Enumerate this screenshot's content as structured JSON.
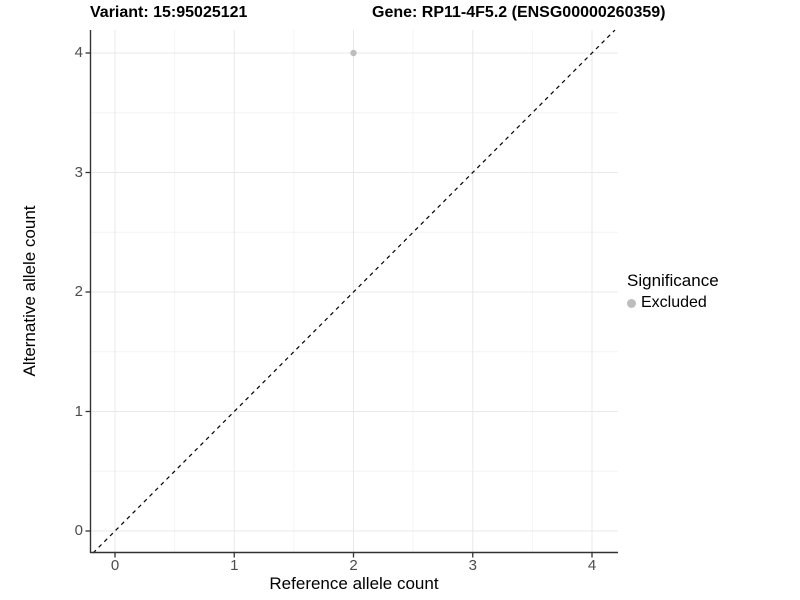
{
  "header": {
    "variant_title": "Variant: 15:95025121",
    "gene_title": "Gene: RP11-4F5.2 (ENSG00000260359)"
  },
  "chart_data": {
    "type": "scatter",
    "title_left": "Variant: 15:95025121",
    "title_right": "Gene: RP11-4F5.2 (ENSG00000260359)",
    "xlabel": "Reference allele count",
    "ylabel": "Alternative allele count",
    "xlim": [
      -0.21,
      4.22
    ],
    "ylim": [
      -0.18,
      4.19
    ],
    "x_ticks": [
      0,
      1,
      2,
      3,
      4
    ],
    "y_ticks": [
      0,
      1,
      2,
      3,
      4
    ],
    "grid": "major+minor",
    "points": [
      {
        "x": 2,
        "y": 4,
        "series": "Excluded"
      }
    ],
    "reference_line": {
      "type": "identity",
      "style": "dashed",
      "color": "#000000"
    },
    "legend": {
      "title": "Significance",
      "position": "right",
      "items": [
        {
          "label": "Excluded",
          "color": "#bdbdbd"
        }
      ]
    },
    "colors": {
      "point": "#bdbdbd",
      "grid_major": "#e8e8e8",
      "grid_minor": "#f4f4f4",
      "axis_line": "#333333",
      "tick_label": "#4d4d4d"
    }
  }
}
